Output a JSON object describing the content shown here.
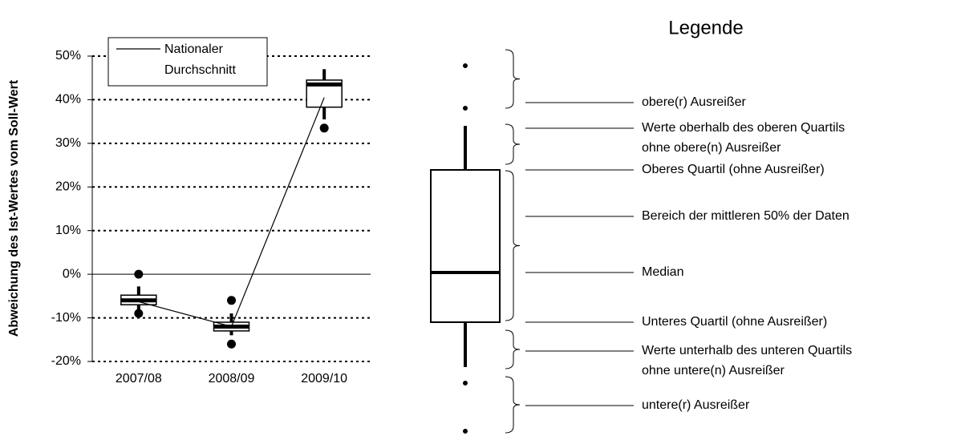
{
  "chart_data": {
    "type": "box",
    "categories": [
      "2007/08",
      "2008/09",
      "2009/10"
    ],
    "boxes": [
      {
        "q1": -7,
        "median": -6,
        "q3": -4.8,
        "whisker_low": -8.3,
        "whisker_high": -2.8,
        "outliers": [
          0,
          -9
        ]
      },
      {
        "q1": -13,
        "median": -12,
        "q3": -11,
        "whisker_low": -14,
        "whisker_high": -9,
        "outliers": [
          -6,
          -16
        ]
      },
      {
        "q1": 38.3,
        "median": 43.5,
        "q3": 44.5,
        "whisker_low": 35.5,
        "whisker_high": 47,
        "outliers": [
          33.5
        ]
      }
    ],
    "series": [
      {
        "name": "Nationaler Durchschnitt",
        "color": "#000000",
        "values": [
          -6.3,
          -12,
          40.5
        ]
      }
    ],
    "ylim": [
      -20,
      50
    ],
    "yticks": [
      {
        "value": -20,
        "label": "-20%"
      },
      {
        "value": -10,
        "label": "-10%"
      },
      {
        "value": 0,
        "label": "0%"
      },
      {
        "value": 10,
        "label": "10%"
      },
      {
        "value": 20,
        "label": "20%"
      },
      {
        "value": 30,
        "label": "30%"
      },
      {
        "value": 40,
        "label": "40%"
      },
      {
        "value": 50,
        "label": "50%"
      }
    ],
    "ylabel": "Abweichung des Ist-Wertes vom Soll-Wert",
    "grid": true,
    "legend": "top-left"
  },
  "legend_diagram": {
    "title": "Legende",
    "items": [
      {
        "lines": [
          "obere(r) Ausreißer"
        ]
      },
      {
        "lines": [
          "Werte oberhalb des oberen Quartils",
          "ohne obere(n) Ausreißer"
        ]
      },
      {
        "lines": [
          "Oberes Quartil (ohne Ausreißer)"
        ]
      },
      {
        "lines": [
          "Bereich der mittleren 50% der Daten"
        ]
      },
      {
        "lines": [
          "Median"
        ]
      },
      {
        "lines": [
          "Unteres Quartil (ohne Ausreißer)"
        ]
      },
      {
        "lines": [
          "Werte unterhalb des unteren Quartils",
          "ohne untere(n) Ausreißer"
        ]
      },
      {
        "lines": [
          "untere(r) Ausreißer"
        ]
      }
    ]
  }
}
